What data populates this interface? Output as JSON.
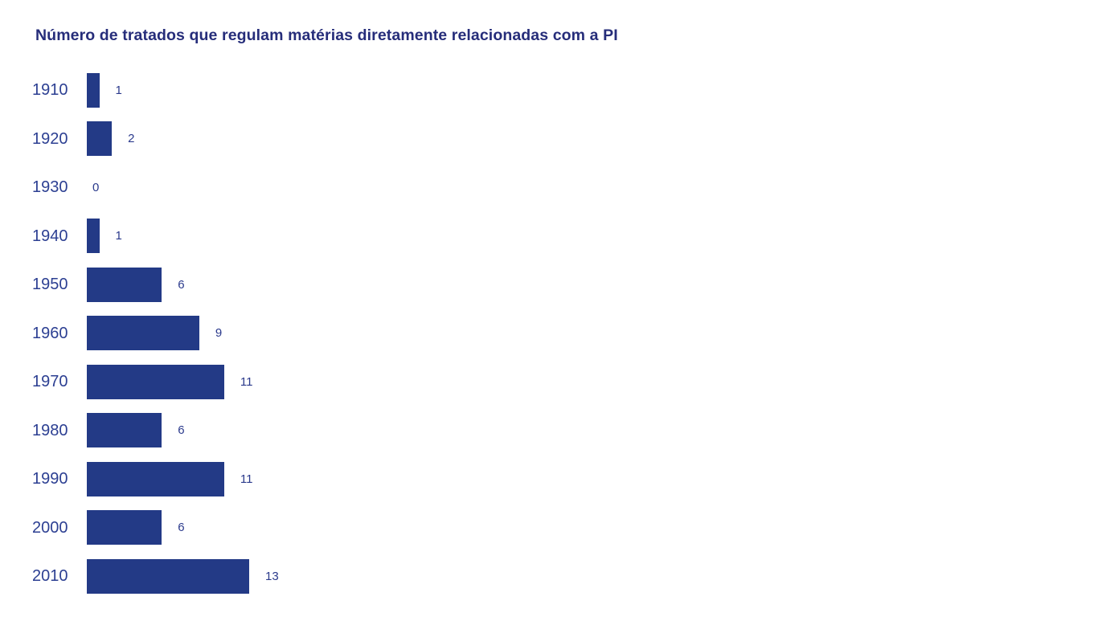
{
  "chart_data": {
    "type": "bar",
    "orientation": "horizontal",
    "title": "Número de tratados que regulam matérias diretamente relacionadas com a PI",
    "categories": [
      "1910",
      "1920",
      "1930",
      "1940",
      "1950",
      "1960",
      "1970",
      "1980",
      "1990",
      "2000",
      "2010"
    ],
    "values": [
      1,
      2,
      0,
      1,
      6,
      9,
      11,
      6,
      11,
      6,
      13
    ],
    "value_labels": [
      "1",
      "2",
      "0",
      "1",
      "6",
      "9",
      "11",
      "6",
      "11",
      "6",
      "13"
    ],
    "xlabel": "",
    "ylabel": "",
    "xlim": [
      0,
      13
    ],
    "grid": false,
    "legend": false,
    "axis_lines": false,
    "colors": {
      "background": "#ffffff",
      "bar_fill": "#233a86",
      "title_text": "#262d7a",
      "category_text": "#2c3f92",
      "value_text": "#2b3a8c"
    }
  }
}
